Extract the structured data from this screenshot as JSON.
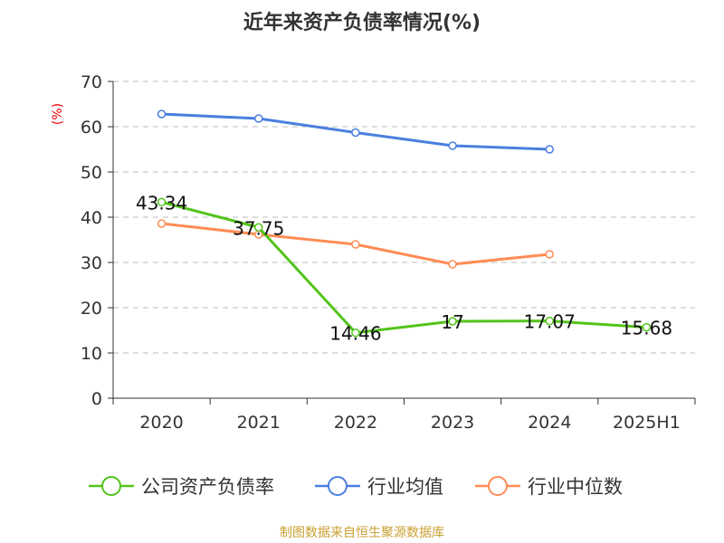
{
  "chart_data": {
    "type": "line",
    "title": "近年来资产负债率情况(%)",
    "ylabel": "(%)",
    "ylim": [
      0,
      70
    ],
    "yticks": [
      0,
      10,
      20,
      30,
      40,
      50,
      60,
      70
    ],
    "grid": true,
    "legend_placement": "bottom",
    "categories": [
      "2020",
      "2021",
      "2022",
      "2023",
      "2024",
      "2025H1"
    ],
    "series": [
      {
        "name": "公司资产负债率",
        "color": "#52c41a",
        "values": [
          43.34,
          37.75,
          14.46,
          17,
          17.07,
          15.68
        ],
        "labels": [
          "43.34",
          "37.75",
          "14.46",
          "17",
          "17.07",
          "15.68"
        ]
      },
      {
        "name": "行业均值",
        "color": "#4a7fe0",
        "values": [
          62.8,
          61.8,
          58.7,
          55.8,
          55.0,
          null
        ]
      },
      {
        "name": "行业中位数",
        "color": "#ff8c55",
        "values": [
          38.6,
          36.2,
          34.0,
          29.6,
          31.8,
          null
        ]
      }
    ]
  },
  "source": "制图数据来自恒生聚源数据库"
}
